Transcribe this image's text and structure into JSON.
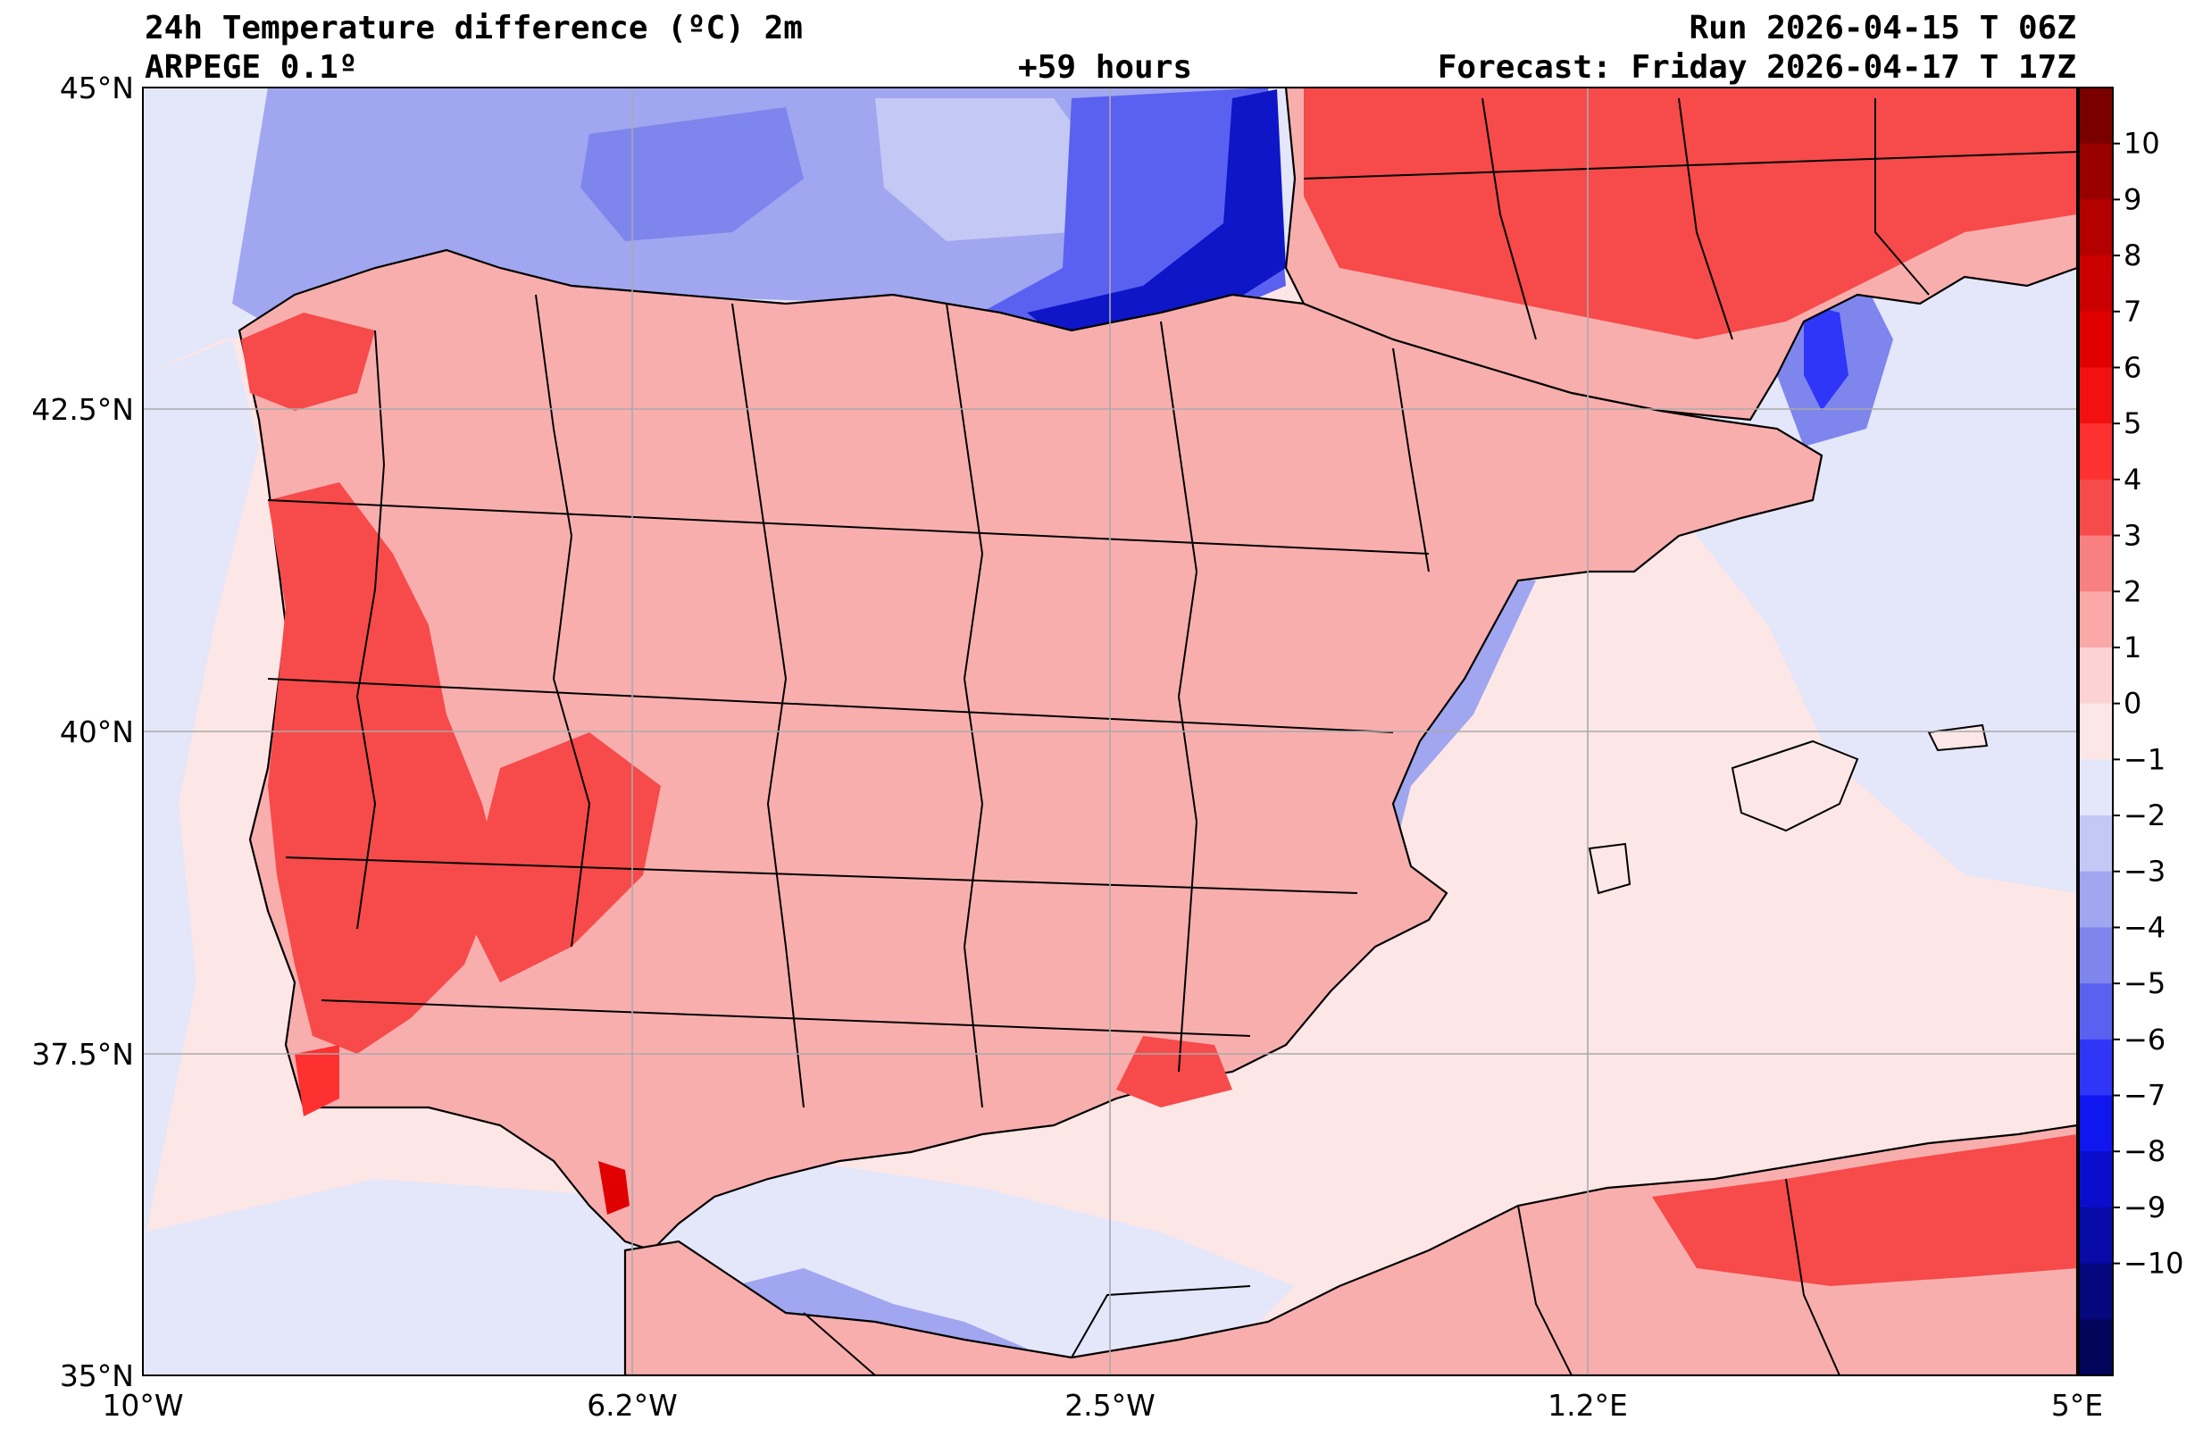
{
  "header": {
    "title": "24h Temperature difference (ºC) 2m",
    "model": "ARPEGE 0.1º",
    "lead": "+59 hours",
    "run": "Run 2026-04-15 T 06Z",
    "forecast": "Forecast: Friday 2026-04-17 T 17Z"
  },
  "axes": {
    "lat_labels": [
      "45°N",
      "42.5°N",
      "40°N",
      "37.5°N",
      "35°N"
    ],
    "lon_labels": [
      "10°W",
      "6.2°W",
      "2.5°W",
      "1.2°E",
      "5°E"
    ]
  },
  "colorbar": {
    "ticks": [
      "10",
      "9",
      "8",
      "7",
      "6",
      "5",
      "4",
      "3",
      "2",
      "1",
      "0",
      "−1",
      "−2",
      "−3",
      "−4",
      "−5",
      "−6",
      "−7",
      "−8",
      "−9",
      "−10"
    ],
    "colors_top_to_bottom": [
      "#7a0000",
      "#9a0000",
      "#b50000",
      "#cc0000",
      "#e00000",
      "#f31010",
      "#ff3030",
      "#f74a4a",
      "#f88080",
      "#faa8a8",
      "#fcd2d2",
      "#fde6e6",
      "#e4e6fa",
      "#c4c8f4",
      "#a0a6ef",
      "#7e85ec",
      "#5a61f0",
      "#2f36f8",
      "#0f16f0",
      "#0a0ecc",
      "#070aa6",
      "#05077e",
      "#03055a"
    ]
  },
  "palette": {
    "land_warm": "#f9aeae",
    "sea_warm": "#fde6e6",
    "sea_cool": "#e4e6fa",
    "cool": "#a0a6ef",
    "cold": "#5a61f0",
    "very_cold": "#0f16c8",
    "warm": "#f74a4a",
    "hot": "#e00000"
  }
}
